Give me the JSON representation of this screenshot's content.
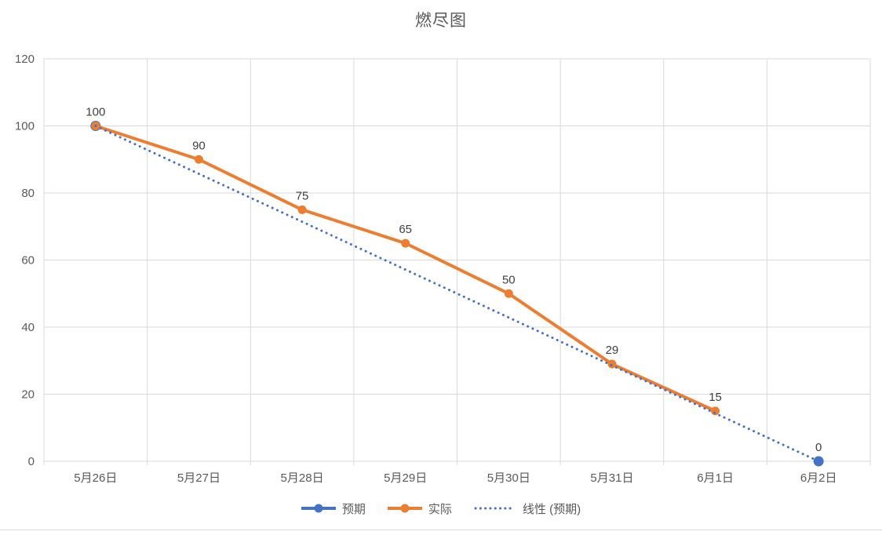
{
  "page": {
    "background": "#ffffff",
    "bottom_rule_color": "#d9d9d9"
  },
  "chart_data": {
    "type": "line",
    "title": "燃尽图",
    "title_color": "#595959",
    "categories": [
      "5月26日",
      "5月27日",
      "5月28日",
      "5月29日",
      "5月30日",
      "5月31日",
      "6月1日",
      "6月2日"
    ],
    "xlabel": "",
    "ylabel": "",
    "ylim": [
      0,
      120
    ],
    "yticks": [
      0,
      20,
      40,
      60,
      80,
      100,
      120
    ],
    "grid": true,
    "grid_color": "#d9d9d9",
    "tick_label_color": "#595959",
    "data_label_color": "#404040",
    "legend_position": "bottom",
    "series": [
      {
        "name": "预期",
        "color": "#4472c4",
        "line": "none",
        "marker": "circle",
        "values": [
          100,
          null,
          null,
          null,
          null,
          null,
          null,
          0
        ],
        "shown_labels": [
          null,
          null,
          null,
          null,
          null,
          null,
          null,
          "0"
        ]
      },
      {
        "name": "实际",
        "color": "#ed7d31",
        "line": "solid",
        "marker": "circle",
        "values": [
          100,
          90,
          75,
          65,
          50,
          29,
          15,
          null
        ],
        "shown_labels": [
          "100",
          "90",
          "75",
          "65",
          "50",
          "29",
          "15",
          null
        ]
      }
    ],
    "trendline": {
      "name": "线性 (预期)",
      "color": "#4472c4",
      "style": "dotted",
      "points": [
        {
          "category": "5月26日",
          "value": 100
        },
        {
          "category": "6月2日",
          "value": 0
        }
      ]
    }
  }
}
